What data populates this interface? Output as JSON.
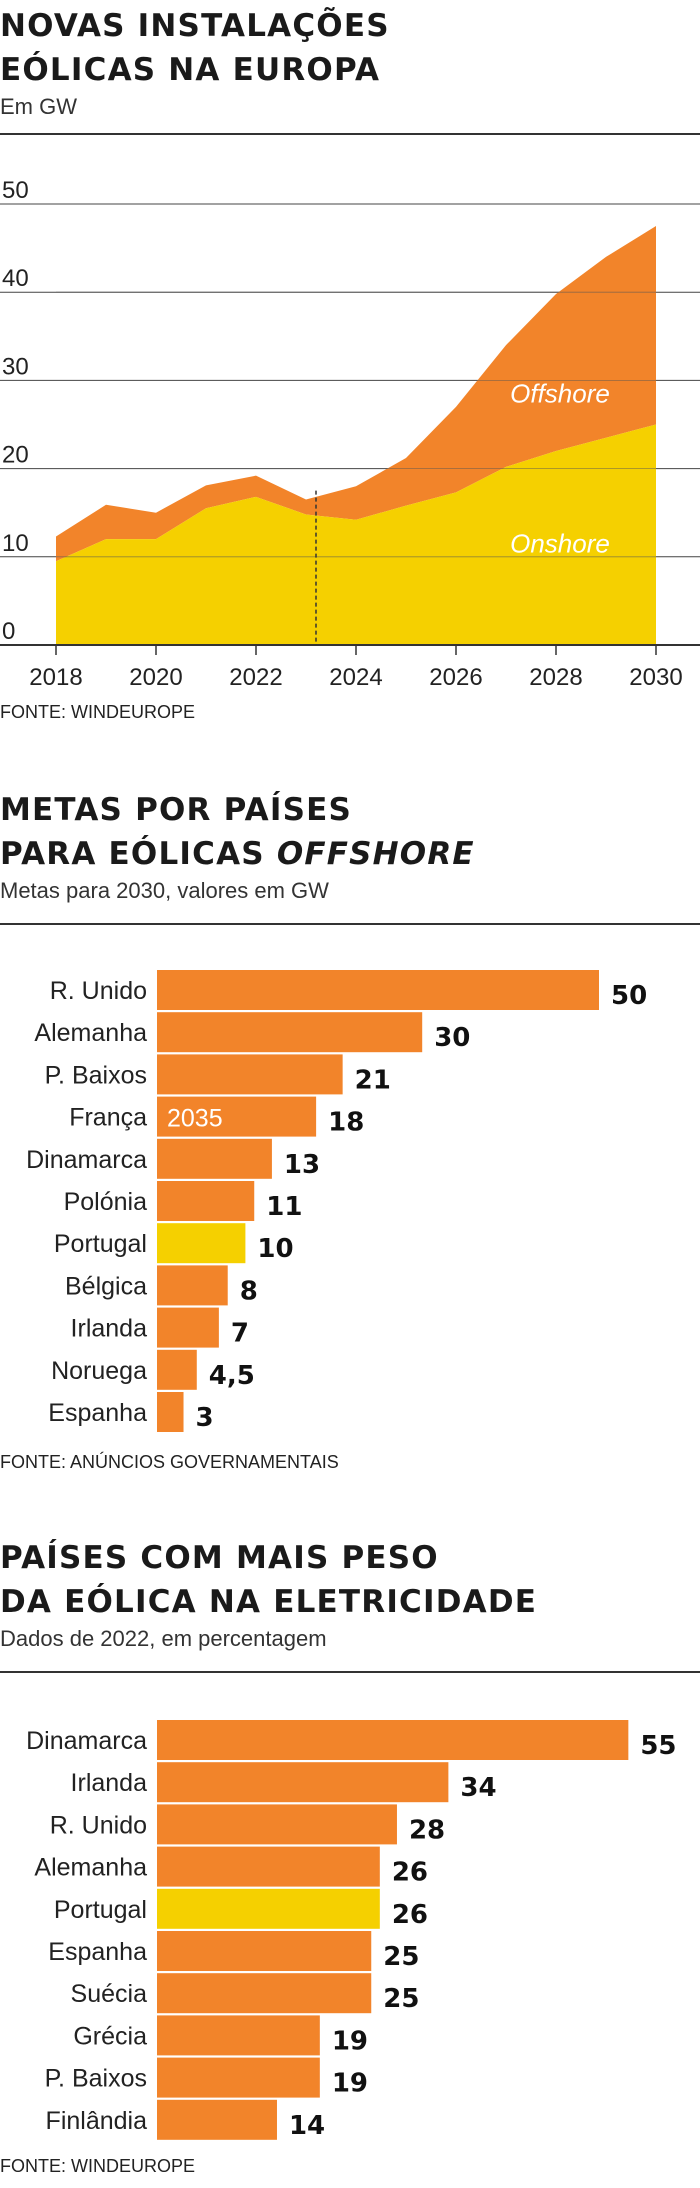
{
  "colors": {
    "orange": "#F2842A",
    "yellow": "#F5D000",
    "text": "#1a1a1a"
  },
  "area_section": {
    "title_line1": "NOVAS INSTALAÇÕES",
    "title_line2": "EÓLICAS NA EUROPA",
    "subtitle": "Em GW",
    "source": "FONTE: WINDEUROPE"
  },
  "offshore_section": {
    "title_line1": "METAS POR PAÍSES",
    "title_line2_prefix": "PARA EÓLICAS ",
    "title_line2_italic": "OFFSHORE",
    "subtitle": "Metas para 2030, valores em GW",
    "source": "FONTE: ANÚNCIOS GOVERNAMENTAIS"
  },
  "share_section": {
    "title_line1": "PAÍSES COM MAIS PESO",
    "title_line2": "DA EÓLICA NA ELETRICIDADE",
    "subtitle": "Dados de 2022, em percentagem",
    "source": "FONTE: WINDEUROPE"
  },
  "chart_data": [
    {
      "type": "area",
      "stacked": true,
      "x": [
        2018,
        2019,
        2020,
        2021,
        2022,
        2023,
        2024,
        2025,
        2026,
        2027,
        2028,
        2029,
        2030
      ],
      "series": [
        {
          "name": "Onshore",
          "values": [
            9.5,
            12,
            12,
            15.5,
            16.8,
            14.8,
            14.2,
            15.8,
            17.3,
            20.2,
            22,
            23.5,
            25
          ],
          "color": "#F5D000"
        },
        {
          "name": "Offshore",
          "values": [
            2.8,
            3.9,
            3,
            2.6,
            2.4,
            1.7,
            3.8,
            5.4,
            9.7,
            13.8,
            17.8,
            20.5,
            22.5
          ],
          "color": "#F2842A"
        }
      ],
      "xticks": [
        "2018",
        "2020",
        "2022",
        "2024",
        "2026",
        "2028",
        "2030"
      ],
      "yticks": [
        "0",
        "10",
        "20",
        "30",
        "40",
        "50"
      ],
      "ylim": [
        0,
        50
      ],
      "xlim": [
        2017.9,
        2030.1
      ],
      "divider_x": 2023.2,
      "grid": true
    },
    {
      "type": "bar",
      "orientation": "horizontal",
      "categories": [
        "R. Unido",
        "Alemanha",
        "P. Baixos",
        "França",
        "Dinamarca",
        "Polónia",
        "Portugal",
        "Bélgica",
        "Irlanda",
        "Noruega",
        "Espanha"
      ],
      "values": [
        50,
        30,
        21,
        18,
        13,
        11,
        10,
        8,
        7,
        4.5,
        3
      ],
      "value_labels": [
        "50",
        "30",
        "21",
        "18",
        "13",
        "11",
        "10",
        "8",
        "7",
        "4,5",
        "3"
      ],
      "highlight": "Portugal",
      "annotations": [
        {
          "category": "França",
          "text": "2035"
        }
      ]
    },
    {
      "type": "bar",
      "orientation": "horizontal",
      "categories": [
        "Dinamarca",
        "Irlanda",
        "R. Unido",
        "Alemanha",
        "Portugal",
        "Espanha",
        "Suécia",
        "Grécia",
        "P. Baixos",
        "Finlândia"
      ],
      "values": [
        55,
        34,
        28,
        26,
        26,
        25,
        25,
        19,
        19,
        14
      ],
      "value_labels": [
        "55",
        "34",
        "28",
        "26",
        "26",
        "25",
        "25",
        "19",
        "19",
        "14"
      ],
      "highlight": "Portugal"
    }
  ]
}
